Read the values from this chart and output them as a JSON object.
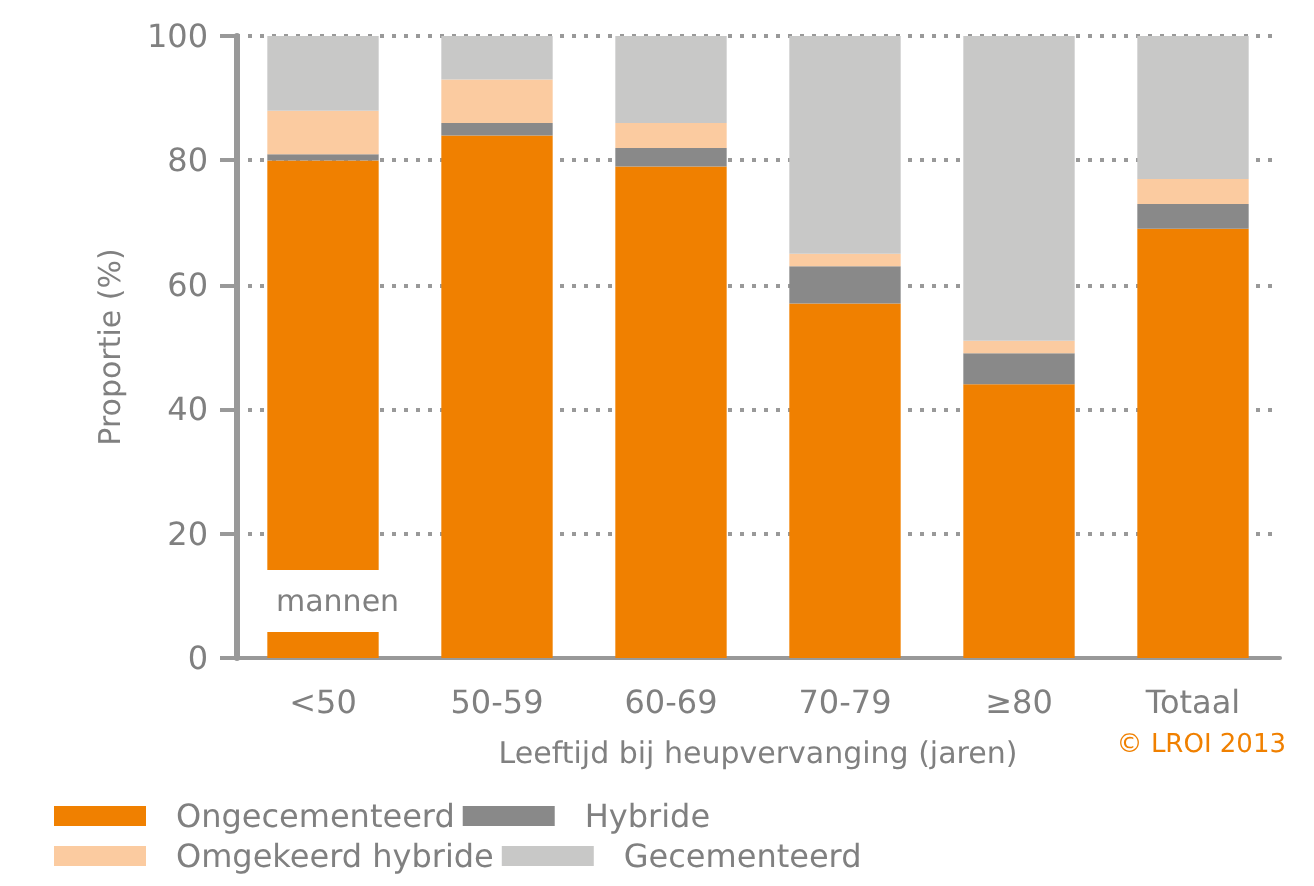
{
  "chart_data": {
    "type": "bar",
    "stacked": true,
    "ylabel": "Proportie (%)",
    "xlabel": "Leeftijd bij heupvervanging (jaren)",
    "categories": [
      "<50",
      "50-59",
      "60-69",
      "70-79",
      "≥80",
      "Totaal"
    ],
    "series": [
      {
        "name": "Ongecementeerd",
        "color": "#f08000",
        "values": [
          80,
          84,
          79,
          57,
          44,
          69
        ]
      },
      {
        "name": "Hybride",
        "color": "#898989",
        "values": [
          1,
          2,
          3,
          6,
          5,
          4
        ]
      },
      {
        "name": "Omgekeerd hybride",
        "color": "#fbcba0",
        "values": [
          7,
          7,
          4,
          2,
          2,
          4
        ]
      },
      {
        "name": "Gecementeerd",
        "color": "#c8c8c7",
        "values": [
          12,
          7,
          14,
          35,
          49,
          23
        ]
      }
    ],
    "ylim": [
      0,
      100
    ],
    "yticks": [
      0,
      20,
      40,
      60,
      80,
      100
    ],
    "grid": "y",
    "legend": "bottom left",
    "annotations": [
      "mannen",
      "© LROI 2013"
    ]
  }
}
